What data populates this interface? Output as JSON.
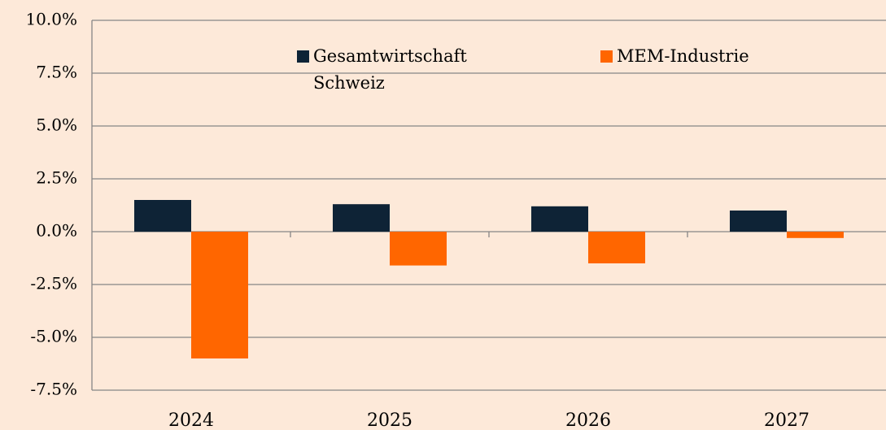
{
  "chart_data": {
    "type": "bar",
    "categories": [
      "2024",
      "2025",
      "2026",
      "2027"
    ],
    "series": [
      {
        "name": "Gesamtwirtschaft Schweiz",
        "color": "#0e2336",
        "values": [
          1.5,
          1.3,
          1.2,
          1.0
        ]
      },
      {
        "name": "MEM-Industrie",
        "color": "#ff6600",
        "values": [
          -6.0,
          -1.6,
          -1.5,
          -0.3
        ]
      }
    ],
    "ylim": [
      -7.5,
      10
    ],
    "yticks": [
      {
        "value": -7.5,
        "label": "-7.5%"
      },
      {
        "value": -5,
        "label": "-5.0%"
      },
      {
        "value": -2.5,
        "label": "-2.5%"
      },
      {
        "value": 0,
        "label": "0.0%"
      },
      {
        "value": 2.5,
        "label": "2.5%"
      },
      {
        "value": 5,
        "label": "5.0%"
      },
      {
        "value": 7.5,
        "label": "7.5%"
      },
      {
        "value": 10,
        "label": "10.0%"
      }
    ],
    "grid": true
  }
}
